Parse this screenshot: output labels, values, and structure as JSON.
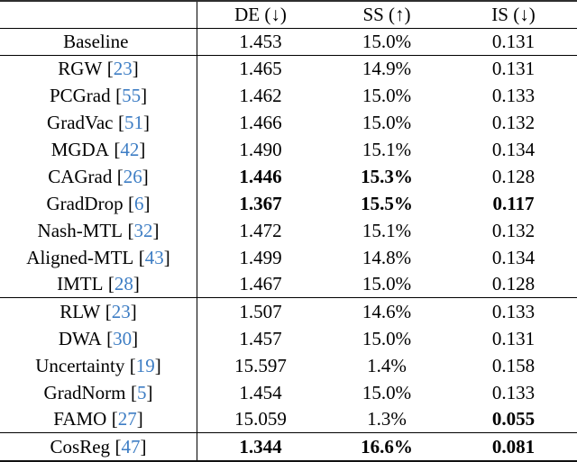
{
  "table": {
    "columns": [
      {
        "label": ""
      },
      {
        "label": "DE (↓)"
      },
      {
        "label": "SS (↑)"
      },
      {
        "label": "IS (↓)"
      }
    ],
    "rows": [
      {
        "method": "Baseline",
        "de": "1.453",
        "ss": "15.0%",
        "is": "0.131",
        "bold": {}
      },
      {
        "method": "RGW",
        "o": "[",
        "cite": "23",
        "c": "]",
        "de": "1.465",
        "ss": "14.9%",
        "is": "0.131",
        "bold": {}
      },
      {
        "method": "PCGrad",
        "o": "[",
        "cite": "55",
        "c": "]",
        "de": "1.462",
        "ss": "15.0%",
        "is": "0.133",
        "bold": {}
      },
      {
        "method": "GradVac",
        "o": "[",
        "cite": "51",
        "c": "]",
        "de": "1.466",
        "ss": "15.0%",
        "is": "0.132",
        "bold": {}
      },
      {
        "method": "MGDA",
        "o": "[",
        "cite": "42",
        "c": "]",
        "de": "1.490",
        "ss": "15.1%",
        "is": "0.134",
        "bold": {}
      },
      {
        "method": "CAGrad",
        "o": "[",
        "cite": "26",
        "c": "]",
        "de": "1.446",
        "ss": "15.3%",
        "is": "0.128",
        "bold": {
          "de": true,
          "ss": true
        }
      },
      {
        "method": "GradDrop",
        "o": "[",
        "cite": "6",
        "c": "]",
        "de": "1.367",
        "ss": "15.5%",
        "is": "0.117",
        "bold": {
          "de": true,
          "ss": true,
          "is": true
        }
      },
      {
        "method": "Nash-MTL",
        "o": "[",
        "cite": "32",
        "c": "]",
        "de": "1.472",
        "ss": "15.1%",
        "is": "0.132",
        "bold": {}
      },
      {
        "method": "Aligned-MTL",
        "o": "[",
        "cite": "43",
        "c": "]",
        "de": "1.499",
        "ss": "14.8%",
        "is": "0.134",
        "bold": {}
      },
      {
        "method": "IMTL",
        "o": "[",
        "cite": "28",
        "c": "]",
        "de": "1.467",
        "ss": "15.0%",
        "is": "0.128",
        "bold": {}
      },
      {
        "method": "RLW",
        "o": "[",
        "cite": "23",
        "c": "]",
        "de": "1.507",
        "ss": "14.6%",
        "is": "0.133",
        "bold": {}
      },
      {
        "method": "DWA",
        "o": "[",
        "cite": "30",
        "c": "]",
        "de": "1.457",
        "ss": "15.0%",
        "is": "0.131",
        "bold": {}
      },
      {
        "method": "Uncertainty",
        "o": "[",
        "cite": "19",
        "c": "]",
        "de": "15.597",
        "ss": "1.4%",
        "is": "0.158",
        "bold": {}
      },
      {
        "method": "GradNorm",
        "o": "[",
        "cite": "5",
        "c": "]",
        "de": "1.454",
        "ss": "15.0%",
        "is": "0.133",
        "bold": {}
      },
      {
        "method": "FAMO",
        "o": "[",
        "cite": "27",
        "c": "]",
        "de": "15.059",
        "ss": "1.3%",
        "is": "0.055",
        "bold": {
          "is": true
        }
      },
      {
        "method": "CosReg",
        "o": "[",
        "cite": "47",
        "c": "]",
        "de": "1.344",
        "ss": "16.6%",
        "is": "0.081",
        "bold": {
          "de": true,
          "ss": true,
          "is": true
        }
      }
    ],
    "colors": {
      "citation_blue": "#3d7dc4",
      "text": "#000000"
    }
  }
}
